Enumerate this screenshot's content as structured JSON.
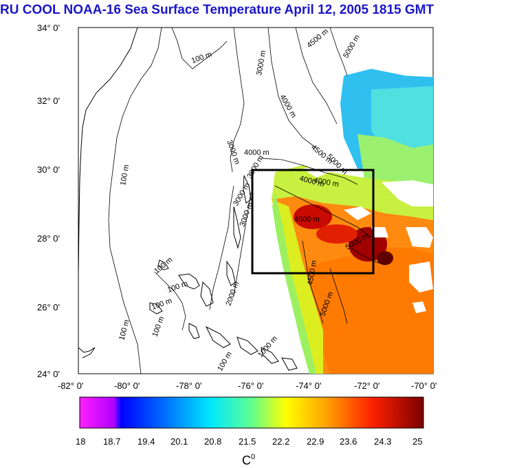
{
  "title": "RU COOL  NOAA-16 Sea Surface Temperature April 12, 2005 1815 GMT",
  "map": {
    "lat_labels": [
      "34° 0'",
      "32° 0'",
      "30° 0'",
      "28° 0'",
      "26° 0'",
      "24° 0'"
    ],
    "lon_labels": [
      "-82° 0'",
      "-80° 0'",
      "-78° 0'",
      "-76° 0'",
      "-74° 0'",
      "-72° 0'",
      "-70° 0'"
    ],
    "contour_labels": [
      "100 m",
      "100 m",
      "100 m",
      "100 m",
      "100 m",
      "100 m",
      "100 m",
      "100 m",
      "1000 m",
      "3000 m",
      "3000 m",
      "4000 m",
      "4000 m",
      "4000 m",
      "4500 m",
      "4500 m",
      "4500 m",
      "4500 m",
      "5000 m",
      "5000 m",
      "5000 m",
      "5000 m",
      "4000 m",
      "3000 m",
      "3000 m",
      "3000 m",
      "2000 m"
    ],
    "study_box": "black"
  },
  "colorbar": {
    "ticks": [
      "18",
      "18.7",
      "19.4",
      "20.1",
      "20.8",
      "21.5",
      "22.2",
      "22.9",
      "23.6",
      "24.3",
      "25"
    ],
    "unit_label": "C",
    "unit_super": "0",
    "colors": [
      "#ff00ff",
      "#0000ff",
      "#00aaff",
      "#00ffff",
      "#7fff7f",
      "#ffff00",
      "#ff9900",
      "#ff3300",
      "#800000"
    ]
  }
}
